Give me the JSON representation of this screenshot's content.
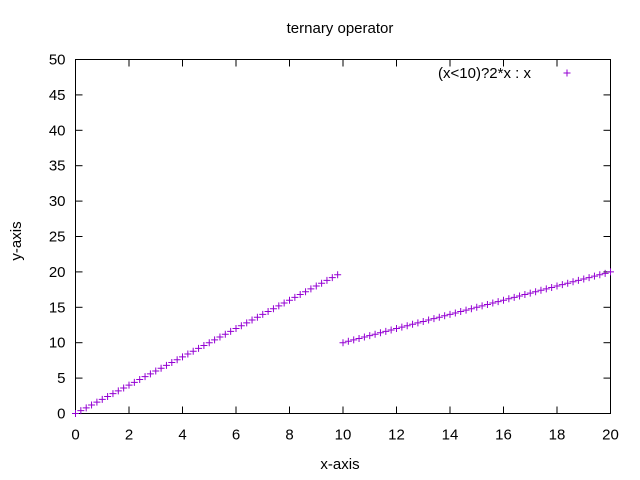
{
  "chart_data": {
    "type": "scatter",
    "title": "ternary operator",
    "xlabel": "x-axis",
    "ylabel": "y-axis",
    "xlim": [
      0,
      20
    ],
    "ylim": [
      0,
      50
    ],
    "xticks": [
      0,
      2,
      4,
      6,
      8,
      10,
      12,
      14,
      16,
      18,
      20
    ],
    "yticks": [
      0,
      5,
      10,
      15,
      20,
      25,
      30,
      35,
      40,
      45,
      50
    ],
    "grid": false,
    "legend_position": "top-right",
    "series": [
      {
        "name": "(x<10)?2*x : x",
        "color": "#9400d3",
        "marker": "plus",
        "x": [
          0,
          0.2,
          0.4,
          0.6,
          0.8,
          1,
          1.2,
          1.4,
          1.6,
          1.8,
          2,
          2.2,
          2.4,
          2.6,
          2.8,
          3,
          3.2,
          3.4,
          3.6,
          3.8,
          4,
          4.2,
          4.4,
          4.6,
          4.8,
          5,
          5.2,
          5.4,
          5.6,
          5.8,
          6,
          6.2,
          6.4,
          6.6,
          6.8,
          7,
          7.2,
          7.4,
          7.6,
          7.8,
          8,
          8.2,
          8.4,
          8.6,
          8.8,
          9,
          9.2,
          9.4,
          9.6,
          9.8,
          10,
          10.2,
          10.4,
          10.6,
          10.8,
          11,
          11.2,
          11.4,
          11.6,
          11.8,
          12,
          12.2,
          12.4,
          12.6,
          12.8,
          13,
          13.2,
          13.4,
          13.6,
          13.8,
          14,
          14.2,
          14.4,
          14.6,
          14.8,
          15,
          15.2,
          15.4,
          15.6,
          15.8,
          16,
          16.2,
          16.4,
          16.6,
          16.8,
          17,
          17.2,
          17.4,
          17.6,
          17.8,
          18,
          18.2,
          18.4,
          18.6,
          18.8,
          19,
          19.2,
          19.4,
          19.6,
          19.8,
          20
        ],
        "y": [
          0,
          0.4,
          0.8,
          1.2,
          1.6,
          2,
          2.4,
          2.8,
          3.2,
          3.6,
          4,
          4.4,
          4.8,
          5.2,
          5.6,
          6,
          6.4,
          6.8,
          7.2,
          7.6,
          8,
          8.4,
          8.8,
          9.2,
          9.6,
          10,
          10.4,
          10.8,
          11.2,
          11.6,
          12,
          12.4,
          12.8,
          13.2,
          13.6,
          14,
          14.4,
          14.8,
          15.2,
          15.6,
          16,
          16.4,
          16.8,
          17.2,
          17.6,
          18,
          18.4,
          18.8,
          19.2,
          19.6,
          10,
          10.2,
          10.4,
          10.6,
          10.8,
          11,
          11.2,
          11.4,
          11.6,
          11.8,
          12,
          12.2,
          12.4,
          12.6,
          12.8,
          13,
          13.2,
          13.4,
          13.6,
          13.8,
          14,
          14.2,
          14.4,
          14.6,
          14.8,
          15,
          15.2,
          15.4,
          15.6,
          15.8,
          16,
          16.2,
          16.4,
          16.6,
          16.8,
          17,
          17.2,
          17.4,
          17.6,
          17.8,
          18,
          18.2,
          18.4,
          18.6,
          18.8,
          19,
          19.2,
          19.4,
          19.6,
          19.8,
          20
        ]
      }
    ]
  }
}
